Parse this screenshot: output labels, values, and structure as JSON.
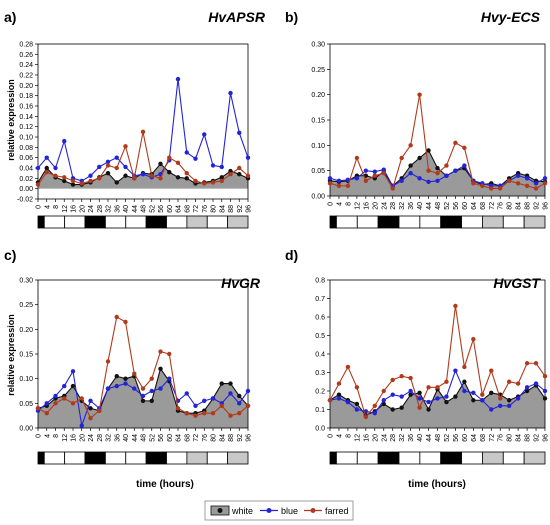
{
  "figure": {
    "shared_xlabel": "time (hours)",
    "legend": [
      "white",
      "blue",
      "farred"
    ]
  },
  "colors": {
    "white": "#111111",
    "blue": "#2323d8",
    "farred": "#b23a1c",
    "area": "#9a9a9a"
  },
  "chart_data": [
    {
      "panel_label": "a)",
      "type": "line",
      "title": "HvAPSR",
      "xlabel": "",
      "ylabel": "relative expression",
      "x": [
        0,
        4,
        8,
        12,
        16,
        20,
        24,
        28,
        32,
        36,
        40,
        44,
        48,
        52,
        56,
        60,
        64,
        68,
        72,
        76,
        80,
        84,
        88,
        92,
        96
      ],
      "xlim": [
        0,
        96
      ],
      "ylim": [
        -0.02,
        0.28
      ],
      "yticks": [
        "-0.02",
        "0.00",
        "0.02",
        "0.04",
        "0.06",
        "0.08",
        "0.10",
        "0.12",
        "0.14",
        "0.16",
        "0.18",
        "0.20",
        "0.22",
        "0.24",
        "0.26",
        "0.28"
      ],
      "light_schedule": [
        "black",
        "white",
        "white",
        "black",
        "white",
        "white",
        "black",
        "white",
        "gray",
        "white",
        "gray"
      ],
      "series": [
        {
          "name": "white",
          "values": [
            0.012,
            0.04,
            0.022,
            0.015,
            0.008,
            0.008,
            0.012,
            0.022,
            0.03,
            0.012,
            0.025,
            0.02,
            0.03,
            0.028,
            0.048,
            0.032,
            0.022,
            0.02,
            0.01,
            0.012,
            0.015,
            0.022,
            0.034,
            0.028,
            0.02
          ]
        },
        {
          "name": "blue",
          "values": [
            0.04,
            0.06,
            0.04,
            0.092,
            0.02,
            0.015,
            0.025,
            0.042,
            0.052,
            0.06,
            0.042,
            0.025,
            0.028,
            0.022,
            0.028,
            0.055,
            0.212,
            0.07,
            0.058,
            0.105,
            0.045,
            0.042,
            0.185,
            0.108,
            0.06
          ]
        },
        {
          "name": "farred",
          "values": [
            0.008,
            0.032,
            0.025,
            0.022,
            0.015,
            0.01,
            0.015,
            0.02,
            0.045,
            0.04,
            0.082,
            0.02,
            0.11,
            0.025,
            0.02,
            0.06,
            0.05,
            0.03,
            0.015,
            0.01,
            0.012,
            0.015,
            0.028,
            0.04,
            0.025
          ]
        }
      ]
    },
    {
      "panel_label": "b)",
      "type": "line",
      "title": "Hvy-ECS",
      "xlabel": "",
      "ylabel": "",
      "x": [
        0,
        4,
        8,
        12,
        16,
        20,
        24,
        28,
        32,
        36,
        40,
        44,
        48,
        52,
        56,
        60,
        64,
        68,
        72,
        76,
        80,
        84,
        88,
        92,
        96
      ],
      "xlim": [
        0,
        96
      ],
      "ylim": [
        0.0,
        0.3
      ],
      "yticks": [
        "0.00",
        "0.05",
        "0.10",
        "0.15",
        "0.20",
        "0.25",
        "0.30"
      ],
      "light_schedule": [
        "black",
        "white",
        "white",
        "black",
        "white",
        "white",
        "black",
        "white",
        "gray",
        "white",
        "gray"
      ],
      "series": [
        {
          "name": "white",
          "values": [
            0.03,
            0.028,
            0.03,
            0.04,
            0.04,
            0.035,
            0.048,
            0.02,
            0.035,
            0.06,
            0.075,
            0.09,
            0.055,
            0.04,
            0.05,
            0.055,
            0.03,
            0.022,
            0.025,
            0.02,
            0.035,
            0.045,
            0.04,
            0.03,
            0.028
          ]
        },
        {
          "name": "blue",
          "values": [
            0.035,
            0.03,
            0.032,
            0.035,
            0.05,
            0.048,
            0.052,
            0.02,
            0.03,
            0.045,
            0.035,
            0.028,
            0.03,
            0.04,
            0.05,
            0.06,
            0.03,
            0.025,
            0.02,
            0.02,
            0.03,
            0.04,
            0.035,
            0.025,
            0.035
          ]
        },
        {
          "name": "farred",
          "values": [
            0.025,
            0.02,
            0.02,
            0.075,
            0.03,
            0.04,
            0.045,
            0.015,
            0.075,
            0.1,
            0.2,
            0.05,
            0.045,
            0.06,
            0.105,
            0.095,
            0.025,
            0.02,
            0.015,
            0.015,
            0.03,
            0.025,
            0.02,
            0.015,
            0.025
          ]
        }
      ]
    },
    {
      "panel_label": "c)",
      "type": "line",
      "title": "HvGR",
      "xlabel": "time (hours)",
      "ylabel": "relative expression",
      "x": [
        0,
        4,
        8,
        12,
        16,
        20,
        24,
        28,
        32,
        36,
        40,
        44,
        48,
        52,
        56,
        60,
        64,
        68,
        72,
        76,
        80,
        84,
        88,
        92,
        96
      ],
      "xlim": [
        0,
        96
      ],
      "ylim": [
        0.0,
        0.3
      ],
      "yticks": [
        "0.00",
        "0.05",
        "0.10",
        "0.15",
        "0.20",
        "0.25",
        "0.30"
      ],
      "light_schedule": [
        "black",
        "white",
        "white",
        "black",
        "white",
        "white",
        "black",
        "white",
        "gray",
        "white",
        "gray"
      ],
      "series": [
        {
          "name": "white",
          "values": [
            0.04,
            0.045,
            0.06,
            0.065,
            0.085,
            0.055,
            0.04,
            0.035,
            0.08,
            0.105,
            0.1,
            0.105,
            0.055,
            0.055,
            0.12,
            0.095,
            0.035,
            0.03,
            0.03,
            0.035,
            0.06,
            0.09,
            0.09,
            0.065,
            0.045
          ]
        },
        {
          "name": "blue",
          "values": [
            0.035,
            0.05,
            0.065,
            0.085,
            0.115,
            0.005,
            0.055,
            0.04,
            0.08,
            0.085,
            0.09,
            0.08,
            0.065,
            0.075,
            0.08,
            0.1,
            0.055,
            0.07,
            0.045,
            0.055,
            0.06,
            0.05,
            0.07,
            0.05,
            0.075
          ]
        },
        {
          "name": "farred",
          "values": [
            0.04,
            0.03,
            0.05,
            0.06,
            0.05,
            0.06,
            0.02,
            0.035,
            0.135,
            0.225,
            0.215,
            0.11,
            0.08,
            0.1,
            0.155,
            0.15,
            0.04,
            0.03,
            0.025,
            0.03,
            0.03,
            0.045,
            0.025,
            0.03,
            0.045
          ]
        }
      ]
    },
    {
      "panel_label": "d)",
      "type": "line",
      "title": "HvGST",
      "xlabel": "time (hours)",
      "ylabel": "",
      "x": [
        0,
        4,
        8,
        12,
        16,
        20,
        24,
        28,
        32,
        36,
        40,
        44,
        48,
        52,
        56,
        60,
        64,
        68,
        72,
        76,
        80,
        84,
        88,
        92,
        96
      ],
      "xlim": [
        0,
        96
      ],
      "ylim": [
        0.0,
        0.8
      ],
      "yticks": [
        "0.0",
        "0.1",
        "0.2",
        "0.3",
        "0.4",
        "0.5",
        "0.6",
        "0.7",
        "0.8"
      ],
      "light_schedule": [
        "black",
        "white",
        "white",
        "black",
        "white",
        "white",
        "black",
        "white",
        "gray",
        "white",
        "gray"
      ],
      "series": [
        {
          "name": "white",
          "values": [
            0.15,
            0.18,
            0.15,
            0.13,
            0.07,
            0.09,
            0.13,
            0.1,
            0.11,
            0.18,
            0.19,
            0.1,
            0.21,
            0.14,
            0.17,
            0.25,
            0.15,
            0.15,
            0.19,
            0.18,
            0.15,
            0.17,
            0.2,
            0.23,
            0.16
          ]
        },
        {
          "name": "blue",
          "values": [
            0.15,
            0.16,
            0.14,
            0.1,
            0.09,
            0.08,
            0.15,
            0.18,
            0.17,
            0.2,
            0.16,
            0.14,
            0.16,
            0.17,
            0.31,
            0.2,
            0.19,
            0.15,
            0.1,
            0.12,
            0.12,
            0.16,
            0.22,
            0.24,
            0.2
          ]
        },
        {
          "name": "farred",
          "values": [
            0.15,
            0.24,
            0.33,
            0.22,
            0.06,
            0.12,
            0.2,
            0.26,
            0.28,
            0.27,
            0.11,
            0.22,
            0.22,
            0.25,
            0.66,
            0.33,
            0.48,
            0.18,
            0.31,
            0.16,
            0.25,
            0.24,
            0.35,
            0.35,
            0.28
          ]
        }
      ]
    }
  ]
}
